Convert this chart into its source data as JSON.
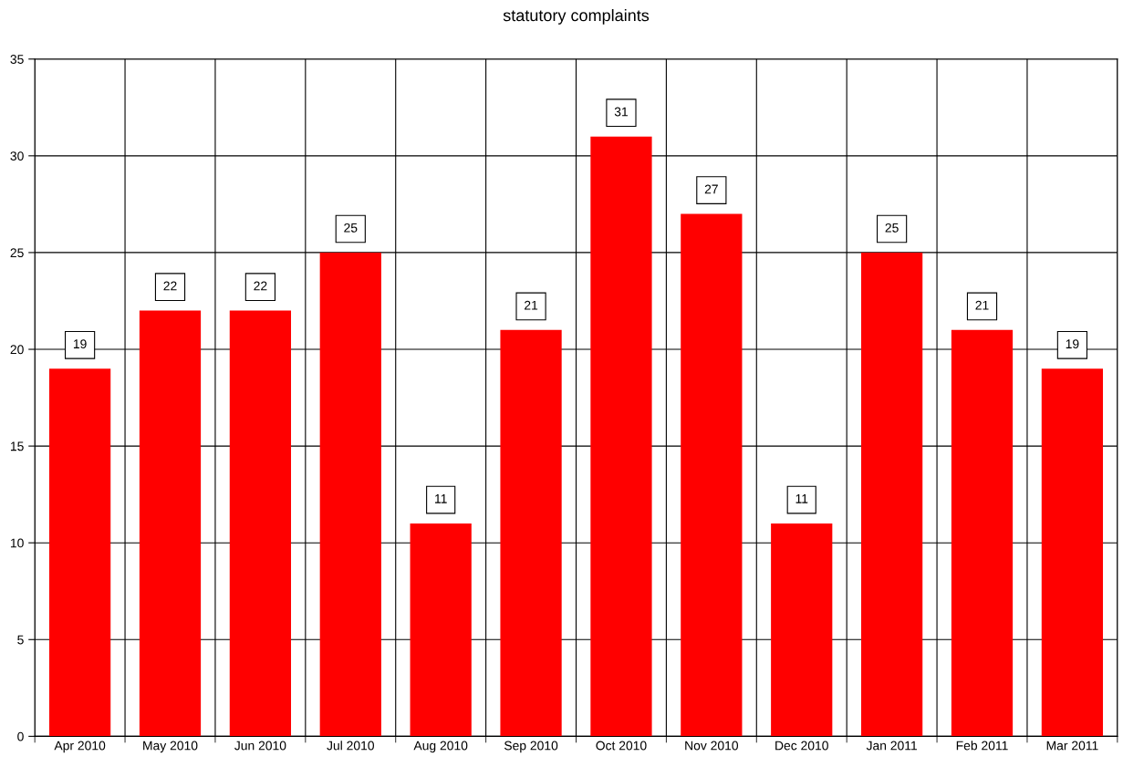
{
  "chart_data": {
    "type": "bar",
    "title": "statutory complaints",
    "categories": [
      "Apr 2010",
      "May 2010",
      "Jun 2010",
      "Jul 2010",
      "Aug 2010",
      "Sep 2010",
      "Oct 2010",
      "Nov 2010",
      "Dec 2010",
      "Jan 2011",
      "Feb 2011",
      "Mar 2011"
    ],
    "values": [
      19,
      22,
      22,
      25,
      11,
      21,
      31,
      27,
      11,
      25,
      21,
      19
    ],
    "color": "#ff0000",
    "ylim": [
      0,
      35
    ],
    "yticks": [
      0,
      5,
      10,
      15,
      20,
      25,
      30,
      35
    ],
    "grid": true,
    "data_labels": true
  }
}
